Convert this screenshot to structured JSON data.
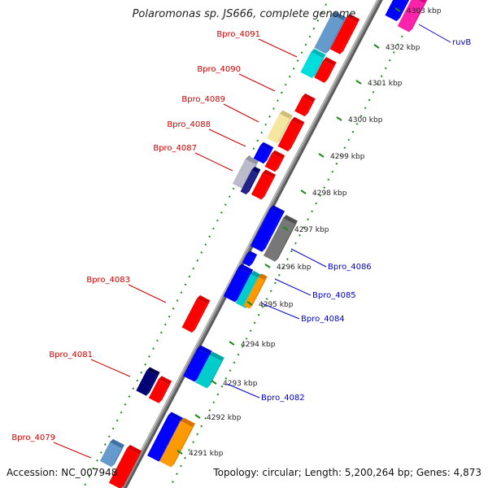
{
  "title": "Polaromonas sp. JS666, complete genome",
  "footer": {
    "accession": "Accession: NC_007948",
    "topology": "Topology: circular; Length: 5,200,264 bp; Genes: 4,873"
  },
  "colors": {
    "backbone": "#8a8a8a",
    "ruler": "#1e8a1e",
    "label_left": "#cc0000",
    "label_right": "#0000cc"
  },
  "scale": {
    "unit": "kbp",
    "ticks": [
      {
        "label": "4291 kbp"
      },
      {
        "label": "4292 kbp"
      },
      {
        "label": "4293 kbp"
      },
      {
        "label": "4294 kbp"
      },
      {
        "label": "4295 kbp"
      },
      {
        "label": "4296 kbp"
      },
      {
        "label": "4297 kbp"
      },
      {
        "label": "4298 kbp"
      },
      {
        "label": "4299 kbp"
      },
      {
        "label": "4300 kbp"
      },
      {
        "label": "4301 kbp"
      },
      {
        "label": "4302 kbp"
      },
      {
        "label": "4303 kbp"
      }
    ]
  },
  "gene_labels": {
    "left": [
      "Bpro_4091",
      "Bpro_4090",
      "Bpro_4089",
      "Bpro_4088",
      "Bpro_4087",
      "Bpro_4083",
      "Bpro_4081",
      "Bpro_4079"
    ],
    "right": [
      "ruvB",
      "Bpro_4086",
      "Bpro_4085",
      "Bpro_4084",
      "Bpro_4082"
    ]
  },
  "features": [
    {
      "lane": 1,
      "color": "#6699cc"
    },
    {
      "lane": 1,
      "color": "#00dddd"
    },
    {
      "lane": 2,
      "color": "#ff0000"
    },
    {
      "lane": 2,
      "color": "#ff0000"
    },
    {
      "lane": 2,
      "color": "#ff0000"
    },
    {
      "lane": 1,
      "color": "#f5e6a0"
    },
    {
      "lane": 2,
      "color": "#ff0000"
    },
    {
      "lane": 1,
      "color": "#0000ff"
    },
    {
      "lane": 2,
      "color": "#ff0000"
    },
    {
      "lane": 1,
      "color": "#bbbbcc"
    },
    {
      "lane": 1,
      "color": "#22228a"
    },
    {
      "lane": 2,
      "color": "#ff0000"
    },
    {
      "lane": 3,
      "color": "#0000ff"
    },
    {
      "lane": 4,
      "color": "#ff22aa"
    },
    {
      "lane": 3,
      "color": "#0000ff"
    },
    {
      "lane": 4,
      "color": "#777777"
    },
    {
      "lane": 3,
      "color": "#0000ff"
    },
    {
      "lane": 3,
      "color": "#0000ff"
    },
    {
      "lane": 4,
      "color": "#00cccc"
    },
    {
      "lane": 4,
      "color": "#ff9900"
    },
    {
      "lane": 2,
      "color": "#ff0000"
    },
    {
      "lane": 3,
      "color": "#0000ff"
    },
    {
      "lane": 4,
      "color": "#00cccc"
    },
    {
      "lane": 1,
      "color": "#000077"
    },
    {
      "lane": 2,
      "color": "#ff0000"
    },
    {
      "lane": 3,
      "color": "#0000ff"
    },
    {
      "lane": 4,
      "color": "#ff9900"
    },
    {
      "lane": 1,
      "color": "#6699cc"
    },
    {
      "lane": 2,
      "color": "#ff0000"
    }
  ]
}
